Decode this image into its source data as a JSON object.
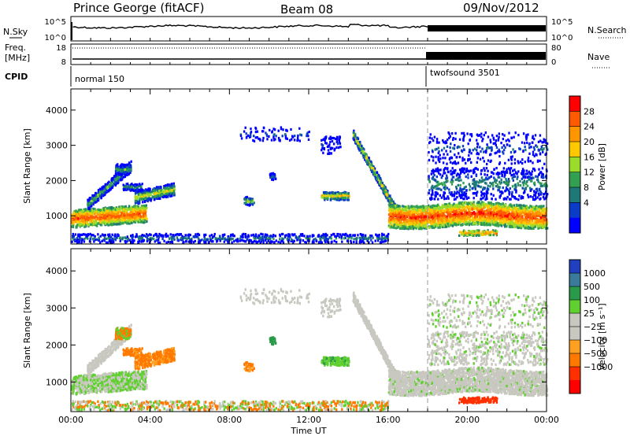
{
  "header": {
    "station": "Prince George (fitACF)",
    "beam": "Beam 08",
    "date": "09/Nov/2012"
  },
  "top_panels": {
    "nsky_label": "N.Sky",
    "nsky_ticks": [
      "10^5",
      "10^0"
    ],
    "nsearch_label": "N.Search",
    "freq_label_1": "Freq.",
    "freq_label_2": "[MHz]",
    "freq_ticks": [
      "18",
      "8"
    ],
    "nave_label": "Nave",
    "nave_ticks": [
      "80",
      "0"
    ],
    "cpid_label": "CPID",
    "cpid_modes": [
      "normal 150",
      "twofsound 3501"
    ]
  },
  "chart_data": [
    {
      "type": "heatmap",
      "quantity": "power",
      "ylabel": "Slant Range [km]",
      "ylim": [
        200,
        4600
      ],
      "yticks": [
        "1000",
        "2000",
        "3000",
        "4000"
      ],
      "xlabel": "Time UT",
      "xlim": [
        0,
        24
      ],
      "xticks": [
        "00:00",
        "04:00",
        "08:00",
        "12:00",
        "16:00",
        "20:00",
        "00:00"
      ],
      "colorbar_label": "Power [dB]",
      "colorbar_ticks": [
        "28",
        "24",
        "20",
        "16",
        "12",
        "8",
        "4"
      ],
      "colorbar_colors": [
        "#ff0000",
        "#ff5a00",
        "#ff9600",
        "#ffc800",
        "#9bdc2a",
        "#32a050",
        "#1e7878",
        "#0a3cc8",
        "#0000ff"
      ],
      "mode_change_time": 18
    },
    {
      "type": "heatmap",
      "quantity": "velocity",
      "ylabel": "Slant Range [km]",
      "ylim": [
        200,
        4600
      ],
      "yticks": [
        "1000",
        "2000",
        "3000",
        "4000"
      ],
      "xlabel": "Time UT",
      "xlim": [
        0,
        24
      ],
      "xticks": [
        "00:00",
        "04:00",
        "08:00",
        "12:00",
        "16:00",
        "20:00",
        "00:00"
      ],
      "colorbar_label": "Velocity [m s⁻¹]",
      "colorbar_ticks": [
        "1000",
        "500",
        "100",
        "25",
        "−25",
        "−100",
        "−500",
        "−1000"
      ],
      "colorbar_colors": [
        "#2040c0",
        "#3a7a9a",
        "#2a9a4a",
        "#60d030",
        "#c8c8c0",
        "#c8c8c0",
        "#ffa020",
        "#ff7800",
        "#ff3000",
        "#ff0000"
      ],
      "mode_change_time": 18
    }
  ]
}
